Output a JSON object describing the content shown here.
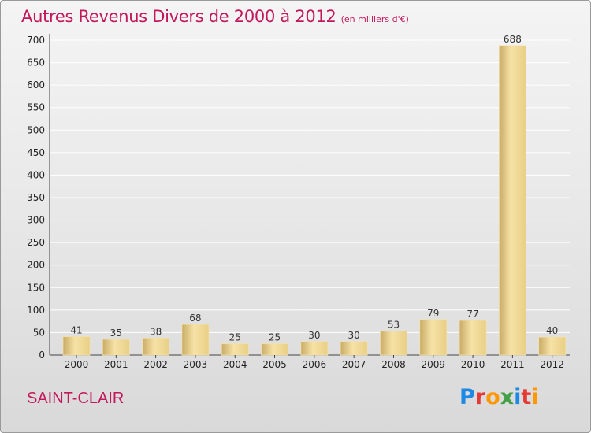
{
  "title": "Autres Revenus Divers de 2000 à 2012",
  "subtitle": "(en milliers d'€)",
  "commune": "SAINT-CLAIR",
  "logo": {
    "letters": [
      "P",
      "r",
      "o",
      "x",
      "i",
      "t",
      "i"
    ]
  },
  "colors": {
    "title": "#c2185b",
    "bar_light": "#f5dfa0",
    "bar_dark": "#c8a860",
    "grid": "#ffffff"
  },
  "chart_data": {
    "type": "bar",
    "categories": [
      "2000",
      "2001",
      "2002",
      "2003",
      "2004",
      "2005",
      "2006",
      "2007",
      "2008",
      "2009",
      "2010",
      "2011",
      "2012"
    ],
    "values": [
      41,
      35,
      38,
      68,
      25,
      25,
      30,
      30,
      53,
      79,
      77,
      688,
      40
    ],
    "title": "Autres Revenus Divers de 2000 à 2012",
    "xlabel": "",
    "ylabel": "",
    "ylim": [
      0,
      700
    ],
    "yticks": [
      0,
      50,
      100,
      150,
      200,
      250,
      300,
      350,
      400,
      450,
      500,
      550,
      600,
      650,
      700
    ],
    "grid": true,
    "data_labels": true
  }
}
